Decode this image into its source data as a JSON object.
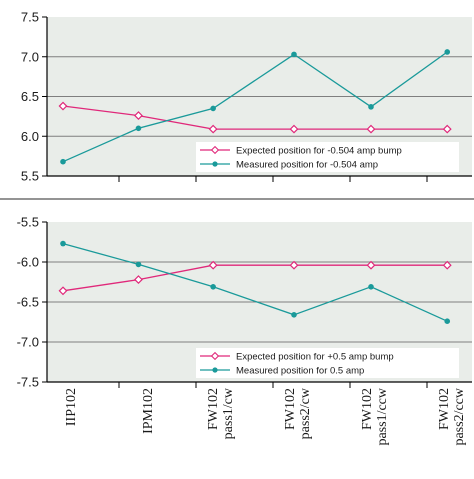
{
  "colors": {
    "plot_bg": "#e9ede9",
    "expected": "#e0287a",
    "measured": "#1a9a9a",
    "axis": "#000000",
    "grid": "#7f7f7f",
    "page_bg": "#ffffff"
  },
  "chart_data": [
    {
      "type": "line",
      "title": "",
      "xlabel": "",
      "ylabel": "",
      "categories": [
        "IIP102",
        "IPM102",
        "FW102 pass1/cw",
        "FW102 pass2/cw",
        "FW102 pass1/ccw",
        "FW102 pass2/ccw"
      ],
      "ylim": [
        5.5,
        7.5
      ],
      "yticks": [
        "5.5",
        "6.0",
        "6.5",
        "7.0",
        "7.5"
      ],
      "ytick_values": [
        5.5,
        6.0,
        6.5,
        7.0,
        7.5
      ],
      "grid": true,
      "legend_position": "bottom-right",
      "x": [
        0.0,
        0.98,
        1.95,
        3.0,
        4.0,
        4.99
      ],
      "series": [
        {
          "name": "Expected position for -0.504 amp bump",
          "marker": "diamond-open",
          "color": "#e0287a",
          "values": [
            6.38,
            6.26,
            6.09,
            6.09,
            6.09,
            6.09
          ]
        },
        {
          "name": "Measured position for -0.504 amp",
          "marker": "circle-filled",
          "color": "#1a9a9a",
          "values": [
            5.68,
            6.1,
            6.35,
            7.03,
            6.37,
            7.06
          ]
        }
      ]
    },
    {
      "type": "line",
      "title": "",
      "xlabel": "",
      "ylabel": "",
      "categories": [
        "IIP102",
        "IPM102",
        "FW102 pass1/cw",
        "FW102 pass2/cw",
        "FW102 pass1/ccw",
        "FW102 pass2/ccw"
      ],
      "ylim": [
        -7.5,
        -5.5
      ],
      "yticks": [
        "-5.5",
        "-6.0",
        "-6.5",
        "-7.0",
        "-7.5"
      ],
      "ytick_values": [
        -5.5,
        -6.0,
        -6.5,
        -7.0,
        -7.5
      ],
      "grid": true,
      "legend_position": "bottom-right",
      "x": [
        0.0,
        0.98,
        1.95,
        3.0,
        4.0,
        4.99
      ],
      "series": [
        {
          "name": "Expected position for +0.5 amp bump",
          "marker": "diamond-open",
          "color": "#e0287a",
          "values": [
            -6.36,
            -6.22,
            -6.04,
            -6.04,
            -6.04,
            -6.04
          ]
        },
        {
          "name": "Measured position for 0.5 amp",
          "marker": "circle-filled",
          "color": "#1a9a9a",
          "values": [
            -5.77,
            -6.03,
            -6.31,
            -6.66,
            -6.31,
            -6.74
          ]
        }
      ]
    }
  ],
  "category_labels": [
    [
      "IIP102"
    ],
    [
      "IPM102"
    ],
    [
      "FW102",
      "pass1/cw"
    ],
    [
      "FW102",
      "pass2/cw"
    ],
    [
      "FW102",
      "pass1/ccw"
    ],
    [
      "FW102",
      "pass2/ccw"
    ]
  ]
}
